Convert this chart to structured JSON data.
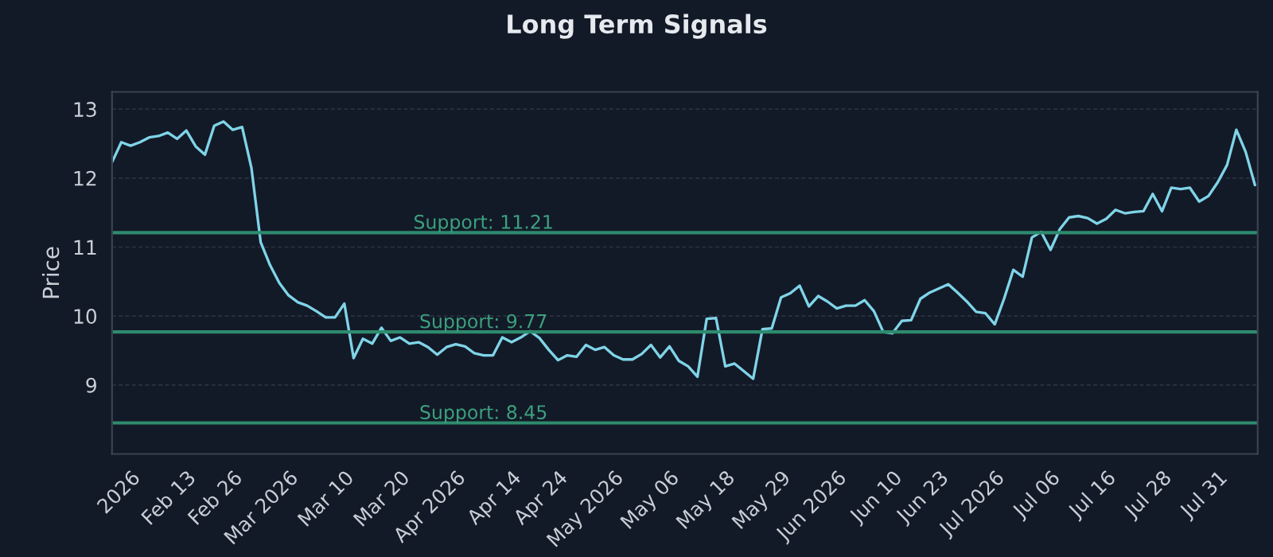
{
  "chart_data": {
    "type": "line",
    "title": "Long Term Signals",
    "ylabel": "Price",
    "series": [
      {
        "color": "#7fd4e8",
        "values": [
          12.23,
          12.52,
          12.47,
          12.52,
          12.59,
          12.61,
          12.66,
          12.57,
          12.69,
          12.46,
          12.34,
          12.76,
          12.82,
          12.7,
          12.74,
          12.15,
          11.07,
          10.74,
          10.48,
          10.3,
          10.2,
          10.15,
          10.07,
          9.98,
          9.98,
          10.18,
          9.39,
          9.67,
          9.6,
          9.83,
          9.64,
          9.69,
          9.6,
          9.62,
          9.55,
          9.44,
          9.55,
          9.59,
          9.56,
          9.46,
          9.43,
          9.43,
          9.69,
          9.62,
          9.69,
          9.78,
          9.68,
          9.51,
          9.36,
          9.43,
          9.41,
          9.58,
          9.51,
          9.55,
          9.43,
          9.37,
          9.37,
          9.45,
          9.58,
          9.4,
          9.56,
          9.35,
          9.27,
          9.12,
          9.96,
          9.97,
          9.27,
          9.31,
          9.2,
          9.09,
          9.81,
          9.82,
          10.27,
          10.33,
          10.44,
          10.14,
          10.29,
          10.21,
          10.11,
          10.15,
          10.15,
          10.23,
          10.07,
          9.77,
          9.75,
          9.93,
          9.94,
          10.25,
          10.34,
          10.4,
          10.46,
          10.34,
          10.21,
          10.06,
          10.04,
          9.88,
          10.25,
          10.67,
          10.57,
          11.14,
          11.22,
          10.96,
          11.26,
          11.43,
          11.45,
          11.42,
          11.34,
          11.41,
          11.54,
          11.49,
          11.51,
          11.52,
          11.77,
          11.52,
          11.86,
          11.84,
          11.86,
          11.66,
          11.74,
          11.94,
          12.19,
          12.7,
          12.38,
          11.9
        ]
      }
    ],
    "categories": [
      null,
      null,
      "2026",
      null,
      null,
      null,
      null,
      null,
      "Feb 13",
      null,
      null,
      null,
      null,
      "Feb 26",
      null,
      null,
      null,
      null,
      null,
      "Mar 2026",
      null,
      null,
      null,
      null,
      null,
      "Mar 10",
      null,
      null,
      null,
      null,
      null,
      "Mar 20",
      null,
      null,
      null,
      null,
      null,
      "Apr 2026",
      null,
      null,
      null,
      null,
      null,
      "Apr 14",
      null,
      null,
      null,
      null,
      "Apr 24",
      null,
      null,
      null,
      null,
      null,
      "May 2026",
      null,
      null,
      null,
      null,
      null,
      "May 06",
      null,
      null,
      null,
      null,
      null,
      "May 18",
      null,
      null,
      null,
      null,
      null,
      "May 29",
      null,
      null,
      null,
      null,
      null,
      "Jun 2026",
      null,
      null,
      null,
      null,
      null,
      "Jun 10",
      null,
      null,
      null,
      null,
      "Jun 23",
      null,
      null,
      null,
      null,
      null,
      "Jul 2026",
      null,
      null,
      null,
      null,
      null,
      "Jul 06",
      null,
      null,
      null,
      null,
      null,
      "Jul 16",
      null,
      null,
      null,
      null,
      null,
      "Jul 28",
      null,
      null,
      null,
      null,
      null,
      "Jul 31",
      null,
      null,
      null,
      null
    ],
    "ylim": [
      8.0,
      13.25
    ],
    "yticks": [
      9,
      10,
      11,
      12,
      13
    ],
    "ref_lines": [
      {
        "axis": "y",
        "value": 11.21,
        "label": "Support: 11.21",
        "color": "#2e8b6e"
      },
      {
        "axis": "y",
        "value": 9.77,
        "label": "Support: 9.77",
        "color": "#2e8b6e"
      },
      {
        "axis": "y",
        "value": 8.45,
        "label": "Support: 8.45",
        "color": "#2e8b6e"
      }
    ],
    "grid": "y",
    "marker": "none",
    "line_style": "solid"
  }
}
